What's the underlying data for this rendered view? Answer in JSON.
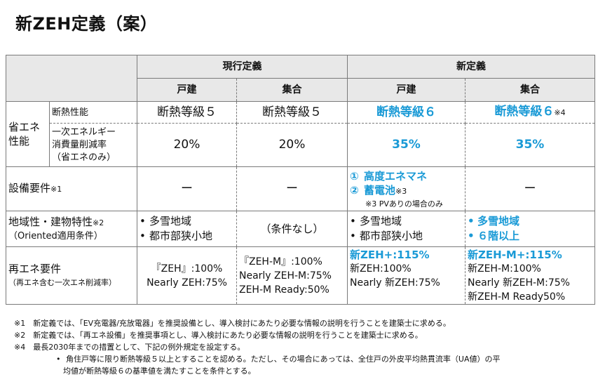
{
  "title": "新ZEH定義（案）",
  "header": {
    "current": "現行定義",
    "new": "新定義",
    "detached": "戸建",
    "collective": "集合"
  },
  "rows": {
    "shoene": {
      "group_label": "省エネ\n性能",
      "insulation_label": "断熱性能",
      "energy_label": "一次エネルギー\n消費量削減率\n（省エネのみ）",
      "insulation": [
        "断熱等級５",
        "断熱等級５",
        "断熱等級６",
        "断熱等級６"
      ],
      "insulation_note": "※4",
      "energy": [
        "20%",
        "20%",
        "35%",
        "35%"
      ]
    },
    "equipment": {
      "label": "設備要件",
      "label_note": "※1",
      "cur_detached": "ー",
      "cur_collective": "ー",
      "new_item1_num": "①",
      "new_item1": "高度エネマネ",
      "new_item2_num": "②",
      "new_item2": "蓄電池",
      "new_item2_note": "※3",
      "pv_note": "※3 PVありの場合のみ",
      "new_collective": "ー"
    },
    "regional": {
      "label": "地域性・建物特性",
      "label_note": "※2",
      "sublabel": "（Oriented適用条件）",
      "cur_detached": [
        "多雪地域",
        "都市部狭小地"
      ],
      "cur_collective": "（条件なし）",
      "new_detached": [
        "多雪地域",
        "都市部狭小地"
      ],
      "new_collective": [
        "多雪地域",
        "６階以上"
      ]
    },
    "renewable": {
      "label": "再エネ要件",
      "sublabel": "（再エネ含む一次エネ削減率）",
      "cur_detached": [
        "『ZEH』:100%",
        "Nearly ZEH:75%"
      ],
      "cur_collective": [
        "『ZEH-M』:100%",
        "Nearly ZEH-M:75%",
        "ZEH-M Ready:50%"
      ],
      "new_detached_hl": "新ZEH+:115%",
      "new_detached": [
        "新ZEH:100%",
        "Nearly 新ZEH:75%"
      ],
      "new_collective_hl": "新ZEH-M+:115%",
      "new_collective": [
        "新ZEH-M:100%",
        "Nearly 新ZEH-M:75%",
        "新ZEH-M Ready50%"
      ]
    }
  },
  "notes": {
    "n1": "※1　新定義では、「EV充電器/充放電器」を推奨設備とし、導入検討にあたり必要な情報の説明を行うことを建築士に求める。",
    "n2": "※2　新定義では、「再エネ設備」を推奨事項とし、導入検討にあたり必要な情報の説明を行うことを建築士に求める。",
    "n4": "※4　最長2030年までの措置として、下記の例外規定を設定する。",
    "bullet": "角住戸等に限り断熱等級５以上とすることを認める。ただし、その場合にあっては、全住戸の外皮平均熱貫流率（UA値）の平",
    "bullet_cont": "均値が断熱等級６の基準値を満たすことを条件とする。"
  },
  "colors": {
    "accent": "#1a9ad6",
    "header_bg": "#e8e8e8",
    "border": "#7a7a7a"
  }
}
